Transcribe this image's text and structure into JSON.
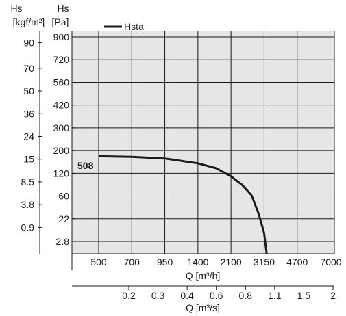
{
  "chart_data": {
    "type": "line",
    "x_unit_m3h_label": "Q [m³/h]",
    "x_unit_m3s_label": "Q [m³/s]",
    "y_left_outer_label_top": "Hs",
    "y_left_outer_label_bottom": "[kgf/m²]",
    "y_left_inner_label_top": "Hs",
    "y_left_inner_label_bottom": "[Pa]",
    "x_ticks_m3h": [
      "500",
      "700",
      "950",
      "1400",
      "2100",
      "3150",
      "4700",
      "7000"
    ],
    "x_ticks_m3s": [
      "0.2",
      "0.3",
      "0.4",
      "0.6",
      "0.8",
      "1.1",
      "1.5",
      "2"
    ],
    "y_ticks_pa": [
      "900",
      "720",
      "560",
      "420",
      "300",
      "200",
      "120",
      "60",
      "22",
      "2.8"
    ],
    "y_ticks_kgf": [
      "90",
      "70",
      "50",
      "36",
      "24",
      "15",
      "8.5",
      "3.8",
      "0.9"
    ],
    "legend": {
      "position": "top-left",
      "entry": "Hsta",
      "color": "#1a1a1a"
    },
    "grid": true,
    "plot_background": "#e6e6e6",
    "series": [
      {
        "name": "Hsta",
        "curve_label": "508",
        "points": [
          {
            "q_m3h": 500,
            "hs_pa": 180
          },
          {
            "q_m3h": 700,
            "hs_pa": 178
          },
          {
            "q_m3h": 950,
            "hs_pa": 172
          },
          {
            "q_m3h": 1400,
            "hs_pa": 155
          },
          {
            "q_m3h": 1750,
            "hs_pa": 138
          },
          {
            "q_m3h": 2100,
            "hs_pa": 112
          },
          {
            "q_m3h": 2400,
            "hs_pa": 90
          },
          {
            "q_m3h": 2700,
            "hs_pa": 62
          },
          {
            "q_m3h": 2950,
            "hs_pa": 30
          },
          {
            "q_m3h": 3150,
            "hs_pa": 10
          },
          {
            "q_m3h": 3250,
            "hs_pa": 2.8
          }
        ]
      }
    ]
  }
}
